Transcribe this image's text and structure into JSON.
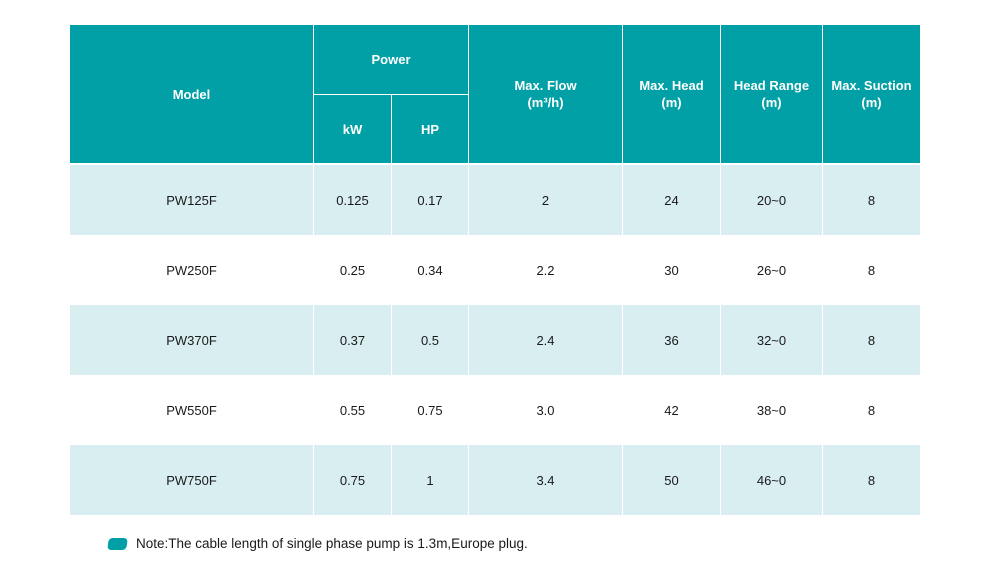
{
  "colors": {
    "header_bg": "#00a0a6",
    "header_text": "#ffffff",
    "row_alt_bg": "#d8eef1",
    "row_bg": "#ffffff",
    "body_text": "#1a1a1a"
  },
  "table": {
    "header": {
      "model": "Model",
      "power": "Power",
      "kw": "kW",
      "hp": "HP",
      "flow_line1": "Max. Flow",
      "flow_line2": "(m³/h)",
      "head_line1": "Max. Head",
      "head_line2": "(m)",
      "range_line1": "Head Range",
      "range_line2": "(m)",
      "suction_line1": "Max. Suction",
      "suction_line2": "(m)"
    },
    "rows": [
      {
        "model": "PW125F",
        "kw": "0.125",
        "hp": "0.17",
        "flow": "2",
        "head": "24",
        "range": "20~0",
        "suction": "8"
      },
      {
        "model": "PW250F",
        "kw": "0.25",
        "hp": "0.34",
        "flow": "2.2",
        "head": "30",
        "range": "26~0",
        "suction": "8"
      },
      {
        "model": "PW370F",
        "kw": "0.37",
        "hp": "0.5",
        "flow": "2.4",
        "head": "36",
        "range": "32~0",
        "suction": "8"
      },
      {
        "model": "PW550F",
        "kw": "0.55",
        "hp": "0.75",
        "flow": "3.0",
        "head": "42",
        "range": "38~0",
        "suction": "8"
      },
      {
        "model": "PW750F",
        "kw": "0.75",
        "hp": "1",
        "flow": "3.4",
        "head": "50",
        "range": "46~0",
        "suction": "8"
      }
    ]
  },
  "note": {
    "text": "Note:The cable length of single phase pump is 1.3m,Europe plug."
  }
}
